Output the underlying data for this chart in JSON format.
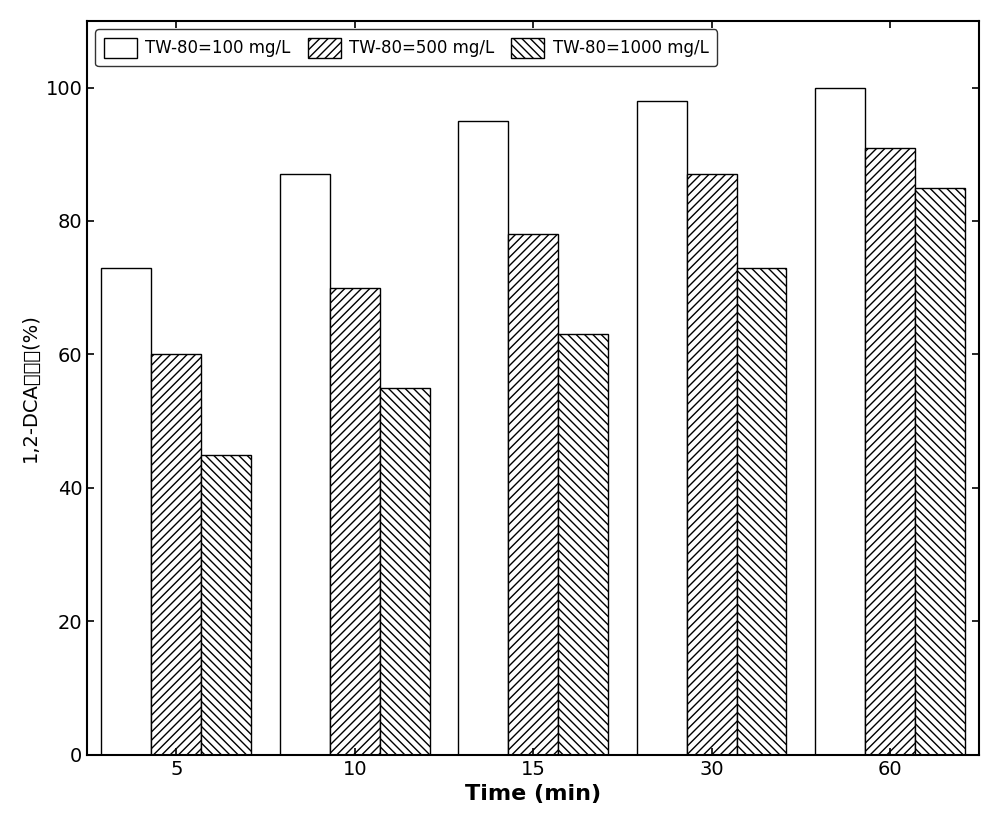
{
  "categories": [
    "5",
    "10",
    "15",
    "30",
    "60"
  ],
  "series": {
    "TW-80=100 mg/L": [
      73,
      87,
      95,
      98,
      100
    ],
    "TW-80=500 mg/L": [
      60,
      70,
      78,
      87,
      91
    ],
    "TW-80=1000 mg/L": [
      45,
      55,
      63,
      73,
      85
    ]
  },
  "xlabel": "Time (min)",
  "ylabel": "1,2-DCA去除率(%)",
  "ylim": [
    0,
    110
  ],
  "yticks": [
    0,
    20,
    40,
    60,
    80,
    100
  ],
  "legend_labels": [
    "TW-80=100 mg/L",
    "TW-80=500 mg/L",
    "TW-80=1000 mg/L"
  ],
  "bar_width": 0.28,
  "facecolor": "white",
  "edgecolor": "black",
  "hatch_patterns": [
    "",
    "////",
    "\\\\\\\\"
  ],
  "xlabel_fontsize": 16,
  "ylabel_fontsize": 14,
  "tick_fontsize": 14,
  "legend_fontsize": 12
}
